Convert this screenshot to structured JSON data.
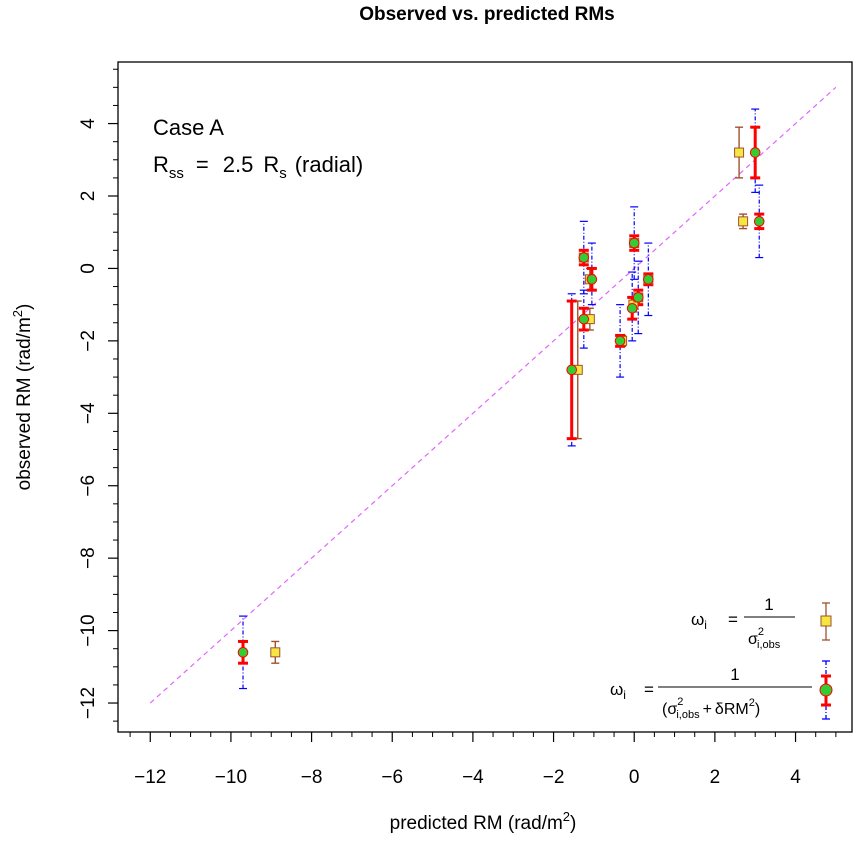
{
  "chart_data": {
    "type": "scatter",
    "title": "Observed vs. predicted RMs",
    "xlabel": {
      "main": "predicted RM (rad",
      "sep": "/",
      "unit": "m",
      "sup": "2",
      "close": ")"
    },
    "ylabel": {
      "main": "observed RM (rad",
      "sep": "/",
      "unit": "m",
      "sup": "2",
      "close": ")"
    },
    "xlim": [
      -12.8,
      5.4
    ],
    "ylim": [
      -12.8,
      5.7
    ],
    "x_ticks": [
      -12,
      -10,
      -8,
      -6,
      -4,
      -2,
      0,
      2,
      4
    ],
    "y_ticks": [
      -12,
      -10,
      -8,
      -6,
      -4,
      -2,
      0,
      2,
      4
    ],
    "x_tick_labels": [
      "−12",
      "−10",
      "−8",
      "−6",
      "−4",
      "−2",
      "0",
      "2",
      "4"
    ],
    "y_tick_labels": [
      "−12",
      "−10",
      "−8",
      "−6",
      "−4",
      "−2",
      "0",
      "2",
      "4"
    ],
    "grid": false,
    "reference_line": {
      "from": [
        -12,
        -12
      ],
      "to": [
        5,
        5
      ],
      "color": "#e066ff",
      "style": "dashed"
    },
    "annotation": {
      "line1": "Case  A",
      "rss_R": "R",
      "rss_sub": "ss",
      "eq": "=",
      "value": "2.5",
      "rs_R": "R",
      "rs_sub": "s",
      "paren": "(radial)"
    },
    "series": [
      {
        "name": "ωi = 1/σ²i,obs",
        "marker": "square",
        "fill": "#f5e642",
        "edge": "#a0522d",
        "errorbar_color": "#a0522d",
        "points": [
          {
            "x": 2.6,
            "y": 3.2,
            "lo": 2.5,
            "hi": 3.9
          },
          {
            "x": 2.7,
            "y": 1.3,
            "lo": 1.1,
            "hi": 1.5
          },
          {
            "x": -1.4,
            "y": -2.8,
            "lo": -4.7,
            "hi": -0.9
          },
          {
            "x": -1.1,
            "y": -1.4,
            "lo": -1.7,
            "hi": -1.1
          },
          {
            "x": -1.1,
            "y": -0.3,
            "lo": -0.6,
            "hi": 0.0
          },
          {
            "x": -1.25,
            "y": 0.3,
            "lo": 0.1,
            "hi": 0.5
          },
          {
            "x": -0.02,
            "y": -1.0,
            "lo": -1.2,
            "hi": -0.8
          },
          {
            "x": 0.1,
            "y": -0.8,
            "lo": -1.0,
            "hi": -0.6
          },
          {
            "x": 0.35,
            "y": -0.3,
            "lo": -0.45,
            "hi": -0.15
          },
          {
            "x": -0.3,
            "y": -2.0,
            "lo": -2.15,
            "hi": -1.85
          },
          {
            "x": 0.0,
            "y": 0.7,
            "lo": 0.5,
            "hi": 0.9
          },
          {
            "x": -8.9,
            "y": -10.6,
            "lo": -10.9,
            "hi": -10.3
          }
        ]
      },
      {
        "name": "ωi = 1/(σ²i,obs + δRM²)",
        "marker": "circle",
        "fill": "#32cd32",
        "edge": "#ff0000",
        "errorbar_color": "#ff0000",
        "outer_errorbar_color": "#0000ff",
        "points": [
          {
            "x": 3.0,
            "y": 3.2,
            "lo": 2.5,
            "hi": 3.9,
            "olo": 2.1,
            "ohi": 4.4
          },
          {
            "x": 3.1,
            "y": 1.3,
            "lo": 1.1,
            "hi": 1.5,
            "olo": 0.3,
            "ohi": 2.3
          },
          {
            "x": -1.55,
            "y": -2.8,
            "lo": -4.7,
            "hi": -0.9,
            "olo": -4.9,
            "ohi": -0.7
          },
          {
            "x": -1.25,
            "y": -1.4,
            "lo": -1.7,
            "hi": -1.1,
            "olo": -2.2,
            "ohi": -0.6
          },
          {
            "x": -1.25,
            "y": 0.3,
            "lo": 0.1,
            "hi": 0.5,
            "olo": -0.7,
            "ohi": 1.3
          },
          {
            "x": -1.05,
            "y": -0.3,
            "lo": -0.6,
            "hi": 0.0,
            "olo": -1.0,
            "ohi": 0.7
          },
          {
            "x": -0.05,
            "y": -1.1,
            "lo": -1.4,
            "hi": -0.8,
            "olo": -2.0,
            "ohi": -0.1
          },
          {
            "x": 0.1,
            "y": -0.8,
            "lo": -1.0,
            "hi": -0.6,
            "olo": -1.8,
            "ohi": 0.2
          },
          {
            "x": 0.35,
            "y": -0.3,
            "lo": -0.45,
            "hi": -0.15,
            "olo": -1.3,
            "ohi": 0.7
          },
          {
            "x": -0.35,
            "y": -2.0,
            "lo": -2.15,
            "hi": -1.85,
            "olo": -3.0,
            "ohi": -1.0
          },
          {
            "x": 0.0,
            "y": 0.7,
            "lo": 0.5,
            "hi": 0.9,
            "olo": -0.3,
            "ohi": 1.7
          },
          {
            "x": -9.7,
            "y": -10.6,
            "lo": -10.9,
            "hi": -10.3,
            "olo": -11.6,
            "ohi": -9.6
          }
        ]
      }
    ],
    "legend": {
      "placement": "bottom-right",
      "entry1": {
        "omega": "ω",
        "omega_sub": "i",
        "eq": "=",
        "num": "1",
        "den_sigma": "σ",
        "den_sup": "2",
        "den_sub": "i,obs"
      },
      "entry2": {
        "omega": "ω",
        "omega_sub": "i",
        "eq": "=",
        "num": "1",
        "den_open": "(σ",
        "den_sup": "2",
        "den_sub": "i,obs",
        "den_plus": "+",
        "den_rm": "δRM",
        "den_rm_sup": "2",
        "den_close": ")"
      }
    }
  }
}
